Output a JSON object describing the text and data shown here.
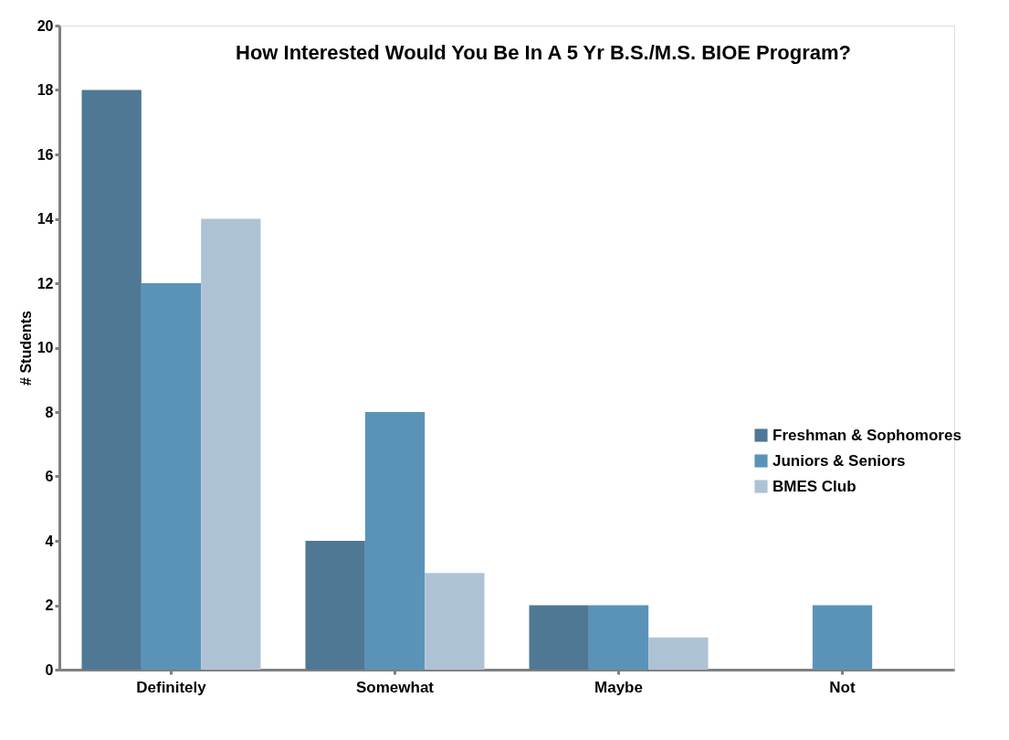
{
  "chart_data": {
    "type": "bar",
    "title": "How Interested Would You Be In A 5 Yr B.S./M.S. BIOE Program?",
    "ylabel": "# Students",
    "categories": [
      "Definitely",
      "Somewhat",
      "Maybe",
      "Not"
    ],
    "series": [
      {
        "name": "Freshman & Sophomores",
        "color": "#4e7894",
        "values": [
          18,
          4,
          2,
          0
        ]
      },
      {
        "name": "Juniors & Seniors",
        "color": "#5b93b8",
        "values": [
          12,
          8,
          2,
          2
        ]
      },
      {
        "name": "BMES Club",
        "color": "#adc3d5",
        "values": [
          14,
          3,
          1,
          0
        ]
      }
    ],
    "ylim": [
      0,
      20
    ],
    "yticks": [
      0,
      2,
      4,
      6,
      8,
      10,
      12,
      14,
      16,
      18,
      20
    ],
    "grid": false,
    "legend": "right"
  }
}
